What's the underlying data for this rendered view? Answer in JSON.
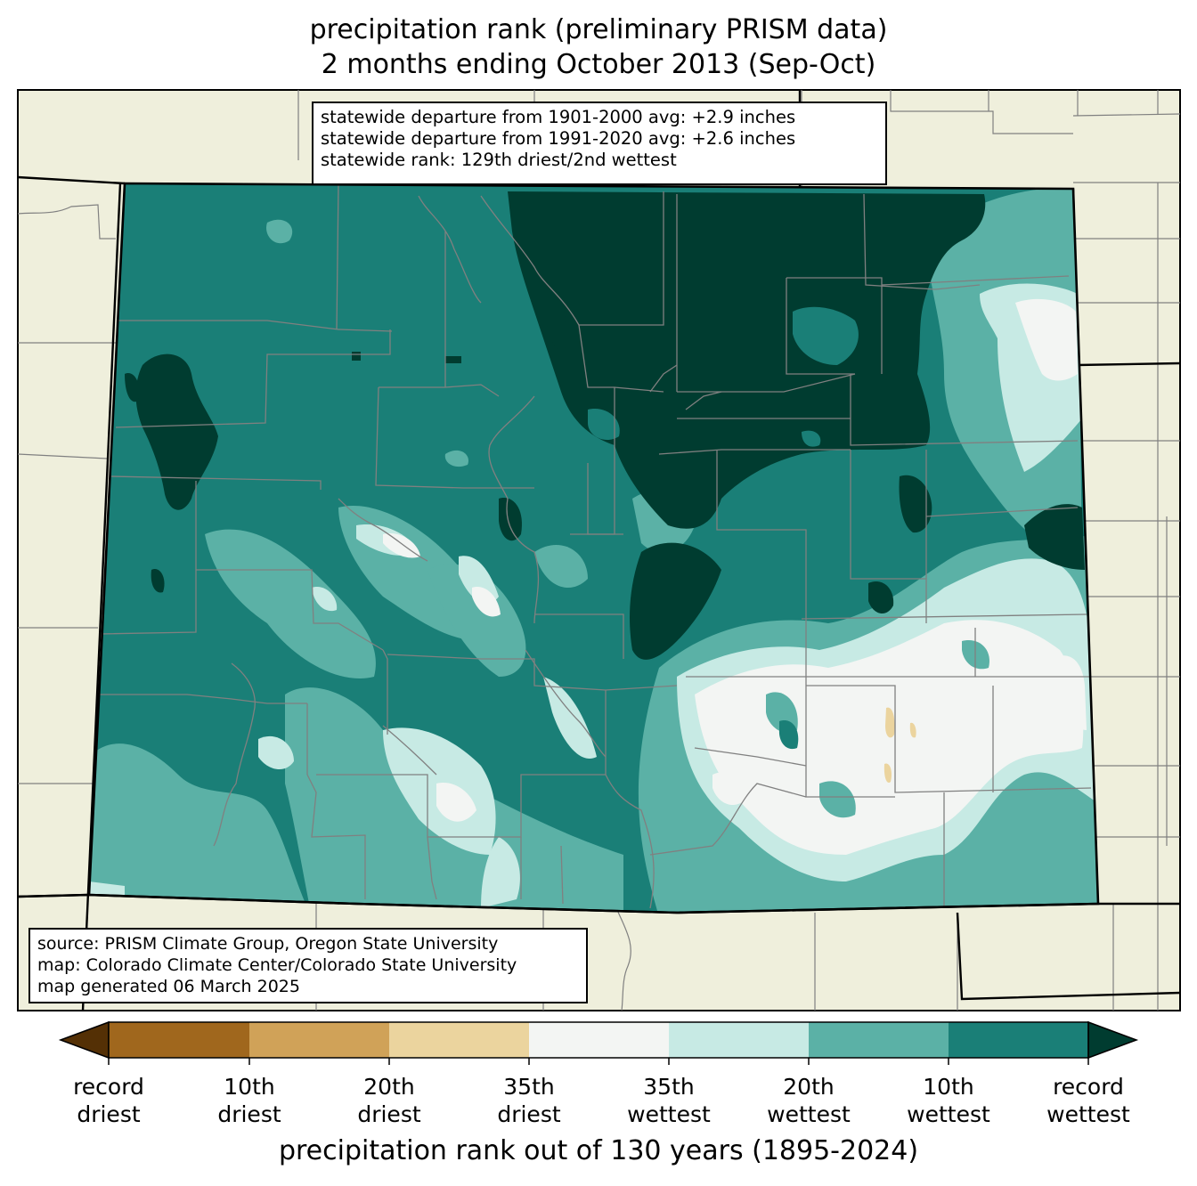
{
  "title": {
    "line1": "precipitation rank (preliminary PRISM data)",
    "line2": "2 months ending October 2013 (Sep-Oct)"
  },
  "stats": {
    "line1": "statewide departure from 1901-2000 avg: +2.9 inches",
    "line2": "statewide departure from 1991-2020 avg: +2.6 inches",
    "line3": "statewide rank: 129th driest/2nd wettest"
  },
  "source": {
    "line1": "source: PRISM Climate Group, Oregon State University",
    "line2": "map: Colorado Climate Center/Colorado State University",
    "line3": "map generated 06 March 2025"
  },
  "colorbar": {
    "title": "precipitation rank out of 130 years (1895-2024)",
    "colors": {
      "record_driest": "#543005",
      "driest_10": "#a0671d",
      "driest_20": "#d0a258",
      "driest_35": "#ebd49e",
      "near_normal": "#f3f5f3",
      "wettest_35": "#c7eae4",
      "wettest_20": "#5bb1a6",
      "wettest_10": "#1a7f77",
      "record_wettest": "#003c30"
    },
    "ticks": [
      {
        "line1": "record",
        "line2": "driest"
      },
      {
        "line1": "10th",
        "line2": "driest"
      },
      {
        "line1": "20th",
        "line2": "driest"
      },
      {
        "line1": "35th",
        "line2": "driest"
      },
      {
        "line1": "35th",
        "line2": "wettest"
      },
      {
        "line1": "20th",
        "line2": "wettest"
      },
      {
        "line1": "10th",
        "line2": "wettest"
      },
      {
        "line1": "record",
        "line2": "wettest"
      }
    ]
  },
  "map_colors": {
    "background_land": "#efefdc",
    "county_lines": "#808080",
    "state_lines": "#000000"
  }
}
